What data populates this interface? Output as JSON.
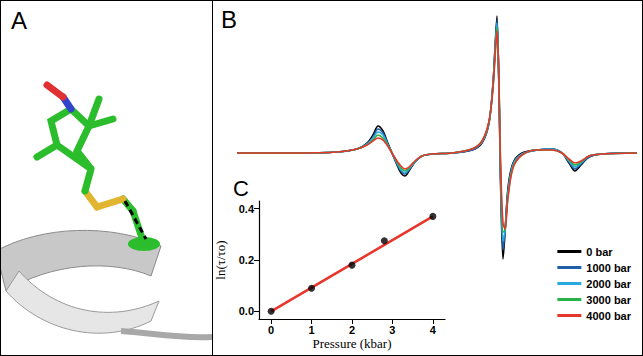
{
  "panel_a": {
    "letter": "A"
  },
  "chart_data": [
    {
      "panel": "B",
      "type": "line",
      "tick_labels": false,
      "grid": false,
      "legend": "lower right",
      "xlim": [
        0,
        400
      ],
      "ylim": [
        -110,
        140
      ],
      "x": [
        0,
        60,
        100,
        120,
        130,
        136,
        141,
        146,
        150,
        155,
        160,
        164,
        168,
        172,
        178,
        185,
        195,
        215,
        235,
        245,
        252,
        256,
        258,
        260,
        262,
        263,
        264,
        266,
        268,
        271,
        276,
        285,
        300,
        315,
        325,
        332,
        338,
        344,
        352,
        365,
        400
      ],
      "series": [
        {
          "name": "0 bar",
          "color": "#000000",
          "values": [
            0,
            0,
            1,
            4,
            10,
            18,
            27,
            22,
            12,
            0,
            -12,
            -20,
            -23,
            -18,
            -9,
            -3,
            -1,
            0,
            3,
            10,
            30,
            70,
            105,
            137,
            60,
            0,
            -50,
            -106,
            -80,
            -35,
            -10,
            0,
            3,
            4,
            0,
            -10,
            -18,
            -12,
            -4,
            -1,
            0
          ]
        },
        {
          "name": "1000 bar",
          "color": "#1f5fa8",
          "values": [
            0,
            0,
            1,
            4,
            9,
            16,
            24,
            20,
            11,
            0,
            -11,
            -18,
            -21,
            -17,
            -9,
            -3,
            -1,
            0,
            3,
            11,
            30,
            69,
            103,
            133,
            63,
            4,
            -44,
            -97,
            -79,
            -38,
            -11,
            -1,
            3,
            4,
            0,
            -9,
            -16,
            -11,
            -4,
            -1,
            0
          ]
        },
        {
          "name": "2000 bar",
          "color": "#29a9e0",
          "values": [
            0,
            0,
            1,
            4,
            9,
            15,
            21,
            18,
            10,
            0,
            -10,
            -17,
            -20,
            -16,
            -9,
            -3,
            -1,
            0,
            4,
            11,
            31,
            68,
            100,
            130,
            65,
            8,
            -38,
            -88,
            -78,
            -40,
            -12,
            -1,
            3,
            4,
            0,
            -8,
            -14,
            -10,
            -3,
            -1,
            0
          ]
        },
        {
          "name": "3000 bar",
          "color": "#2ab24a",
          "values": [
            0,
            0,
            1,
            4,
            8,
            13,
            18,
            15,
            9,
            0,
            -9,
            -15,
            -18,
            -15,
            -8,
            -3,
            -1,
            0,
            4,
            12,
            31,
            66,
            98,
            126,
            68,
            11,
            -31,
            -79,
            -77,
            -43,
            -14,
            -2,
            3,
            3,
            0,
            -7,
            -12,
            -9,
            -3,
            -1,
            0
          ]
        },
        {
          "name": "4000 bar",
          "color": "#e8362a",
          "values": [
            0,
            0,
            1,
            4,
            8,
            12,
            15,
            13,
            8,
            0,
            -8,
            -13,
            -16,
            -14,
            -8,
            -3,
            -1,
            0,
            4,
            12,
            32,
            65,
            95,
            122,
            70,
            15,
            -25,
            -70,
            -76,
            -45,
            -15,
            -2,
            3,
            3,
            0,
            -6,
            -10,
            -8,
            -3,
            -1,
            0
          ]
        }
      ]
    },
    {
      "panel": "C",
      "type": "scatter",
      "grid": false,
      "xlabel": "Pressure (kbar)",
      "ylabel": "ln(τ/τo)",
      "xlim": [
        -0.3,
        4.3
      ],
      "xticks": [
        0,
        1,
        2,
        3,
        4
      ],
      "ylim": [
        -0.03,
        0.43
      ],
      "yticks": [
        {
          "value": 0,
          "label": "0.0"
        },
        {
          "value": 0.2,
          "label": "0.2"
        },
        {
          "value": 0.4,
          "label": "0.4"
        }
      ],
      "x": [
        0,
        1,
        2,
        2.8,
        4
      ],
      "series": [
        {
          "type": "line",
          "color": "#e8362a",
          "line_style": "solid",
          "values": [
            0,
            0.0925,
            0.185,
            0.259,
            0.37
          ]
        },
        {
          "type": "scatter",
          "color": "#000000",
          "marker": "circle",
          "values": [
            0,
            0.09,
            0.18,
            0.275,
            0.37
          ]
        }
      ]
    }
  ]
}
